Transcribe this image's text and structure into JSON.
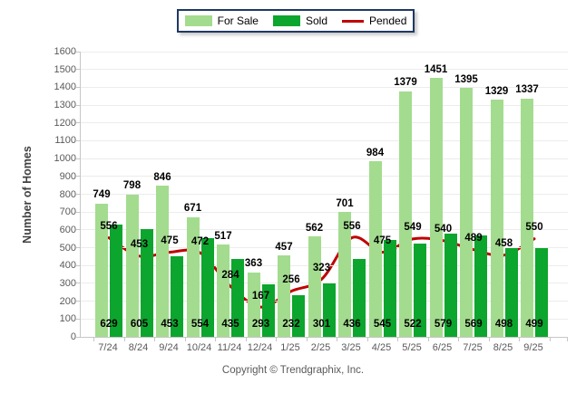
{
  "chart_data": {
    "type": "bar",
    "categories": [
      "7/24",
      "8/24",
      "9/24",
      "10/24",
      "11/24",
      "12/24",
      "1/25",
      "2/25",
      "3/25",
      "4/25",
      "5/25",
      "6/25",
      "7/25",
      "8/25",
      "9/25"
    ],
    "series": [
      {
        "name": "For Sale",
        "type": "bar",
        "color": "#A3DC8E",
        "values": [
          749,
          798,
          846,
          671,
          517,
          363,
          457,
          562,
          701,
          984,
          1379,
          1451,
          1395,
          1329,
          1337
        ]
      },
      {
        "name": "Sold",
        "type": "bar",
        "color": "#0CA52D",
        "values": [
          629,
          605,
          453,
          554,
          435,
          293,
          232,
          301,
          436,
          545,
          522,
          579,
          569,
          498,
          499
        ]
      },
      {
        "name": "Pended",
        "type": "line",
        "color": "#C00000",
        "values": [
          556,
          453,
          475,
          472,
          284,
          167,
          256,
          323,
          556,
          475,
          549,
          540,
          489,
          458,
          550
        ]
      }
    ],
    "title": "",
    "xlabel": "",
    "ylabel": "Number of Homes",
    "ylim": [
      0,
      1600
    ],
    "ytick_step": 100,
    "yticks": [
      0,
      100,
      200,
      300,
      400,
      500,
      600,
      700,
      800,
      900,
      1000,
      1100,
      1200,
      1300,
      1400,
      1500,
      1600
    ],
    "grid": true,
    "legend_position": "top",
    "legend_border_color": "#1F3864",
    "value_label_color": "#000000",
    "axis_text_color": "#595959"
  },
  "footer": {
    "copyright": "Copyright © Trendgraphix, Inc."
  }
}
